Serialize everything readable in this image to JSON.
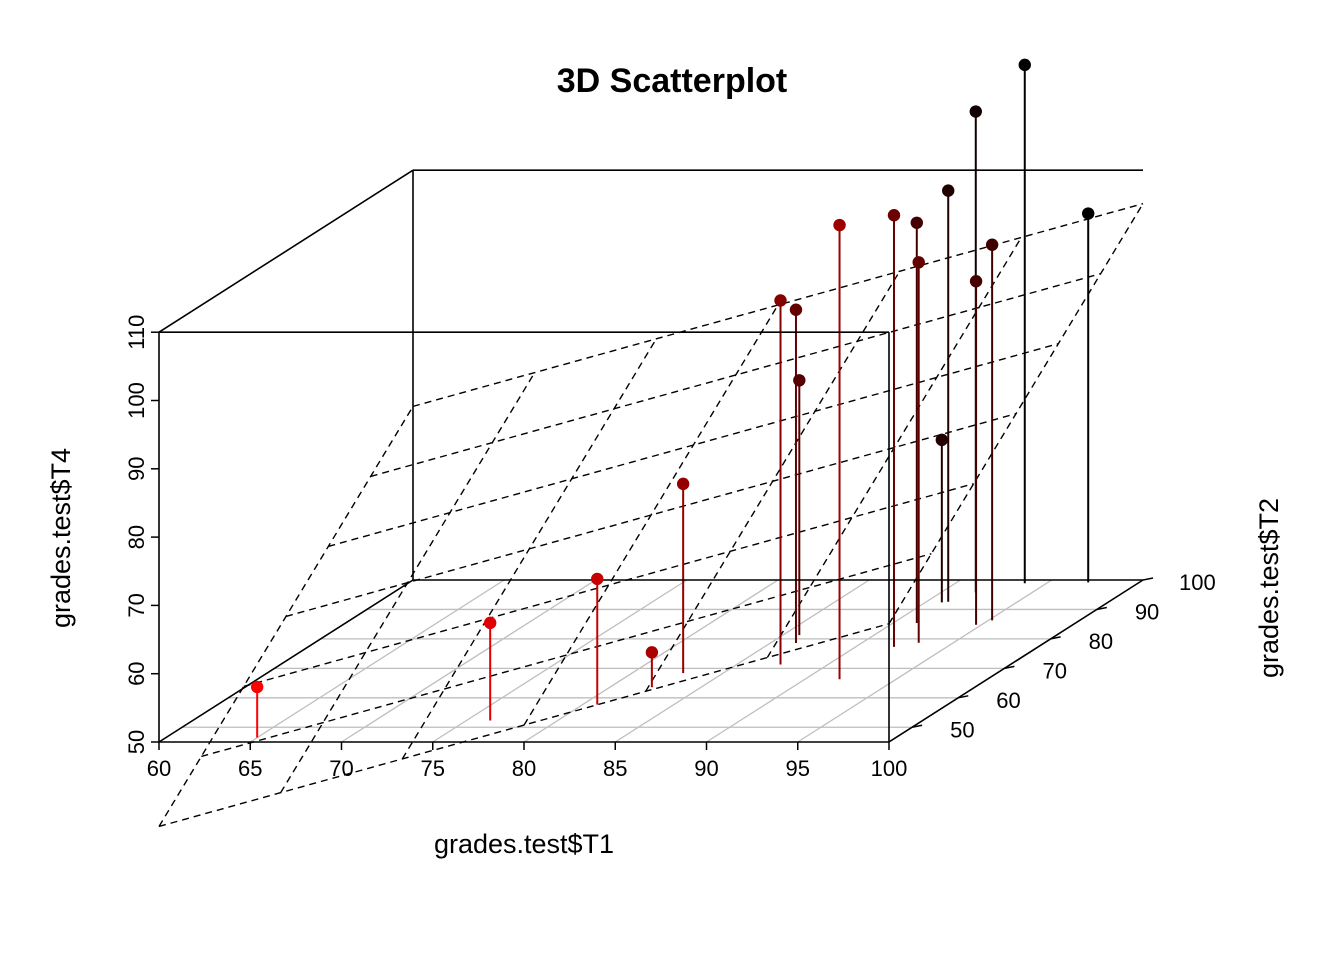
{
  "chart_data": {
    "type": "scatter",
    "subtype": "3d-scatter-with-drop-lines-and-regression-plane",
    "title": "3D Scatterplot",
    "xlabel": "grades.test$T1",
    "ylabel": "grades.test$T2",
    "zlabel": "grades.test$T4",
    "xlim": [
      60,
      100
    ],
    "ylim": [
      45,
      100
    ],
    "zlim": [
      50,
      110
    ],
    "x_ticks": [
      "60",
      "65",
      "70",
      "75",
      "80",
      "85",
      "90",
      "95",
      "100"
    ],
    "y_ticks": [
      "50",
      "60",
      "70",
      "80",
      "90",
      "100"
    ],
    "z_ticks": [
      "50",
      "60",
      "70",
      "80",
      "90",
      "100",
      "110"
    ],
    "grid": true,
    "color_encoding": "point color shades from red (low T2) to black (high T2)",
    "colors": {
      "low": "#ff0000",
      "high": "#000000",
      "grid": "#bebebe",
      "box": "#000000"
    },
    "plane": {
      "intercept": -37.8,
      "slope_x": 0.742,
      "slope_y": 0.687,
      "style": "dashed"
    },
    "points": [
      {
        "x": 65.0,
        "y": 46.5,
        "z": 57.4
      },
      {
        "x": 76.3,
        "y": 52.3,
        "z": 64.3
      },
      {
        "x": 80.8,
        "y": 57.7,
        "z": 68.4
      },
      {
        "x": 82.3,
        "y": 63.6,
        "z": 55.1
      },
      {
        "x": 82.8,
        "y": 68.4,
        "z": 77.7
      },
      {
        "x": 85.9,
        "y": 81.3,
        "z": 87.3
      },
      {
        "x": 86.4,
        "y": 78.6,
        "z": 98.8
      },
      {
        "x": 87.4,
        "y": 71.3,
        "z": 103.3
      },
      {
        "x": 90.9,
        "y": 92.4,
        "z": 73.8
      },
      {
        "x": 91.2,
        "y": 92.6,
        "z": 110.2
      },
      {
        "x": 91.3,
        "y": 85.4,
        "z": 108.6
      },
      {
        "x": 91.9,
        "y": 66.3,
        "z": 116.5
      },
      {
        "x": 92.1,
        "y": 77.3,
        "z": 113.2
      },
      {
        "x": 91.9,
        "y": 95.8,
        "z": 120.4
      },
      {
        "x": 93.1,
        "y": 78.7,
        "z": 105.7
      },
      {
        "x": 93.8,
        "y": 98.9,
        "z": 125.9
      },
      {
        "x": 94.7,
        "y": 84.8,
        "z": 100.3
      },
      {
        "x": 95.2,
        "y": 86.3,
        "z": 105.0
      },
      {
        "x": 97.2,
        "y": 99.2,
        "z": 104.0
      }
    ]
  }
}
